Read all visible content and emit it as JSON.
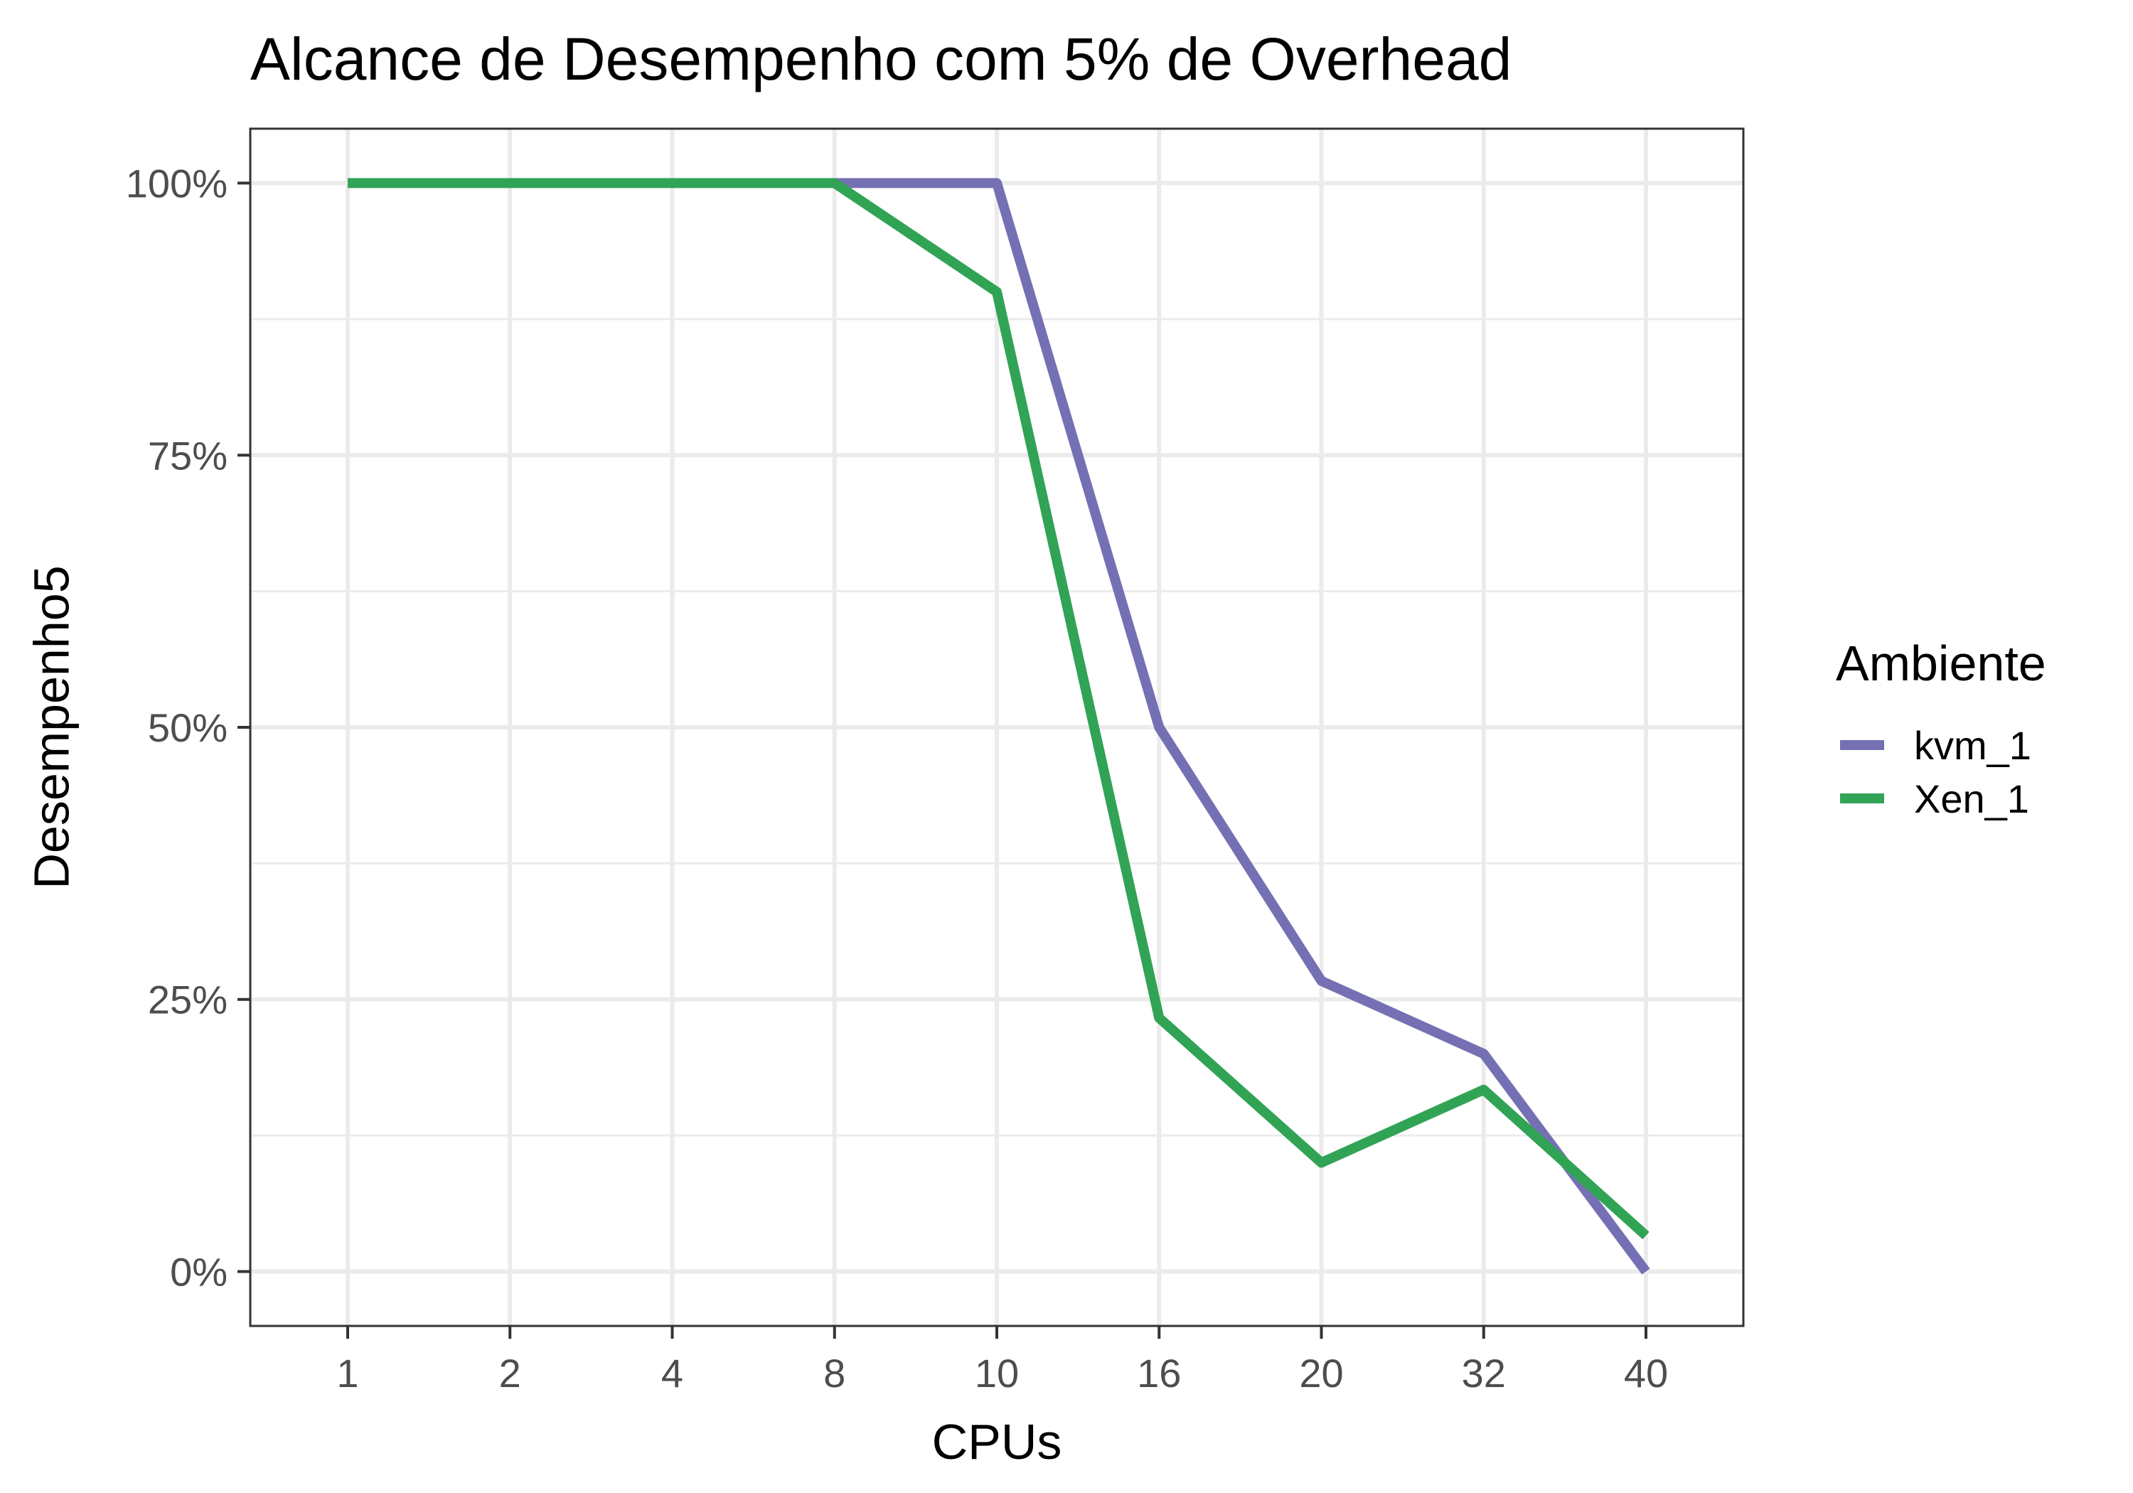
{
  "chart_data": {
    "type": "line",
    "title": "Alcance de Desempenho com 5% de Overhead",
    "xlabel": "CPUs",
    "ylabel": "Desempenho5",
    "categories": [
      "1",
      "2",
      "4",
      "8",
      "10",
      "16",
      "20",
      "32",
      "40"
    ],
    "y_tick_labels": [
      "0%",
      "25%",
      "50%",
      "75%",
      "100%"
    ],
    "y_tick_values": [
      0,
      0.25,
      0.5,
      0.75,
      1.0
    ],
    "ylim": [
      -0.05,
      1.05
    ],
    "grid": true,
    "legend": {
      "title": "Ambiente",
      "placement": "right"
    },
    "series": [
      {
        "name": "kvm_1",
        "color": "#7570b3",
        "values": [
          1.0,
          1.0,
          1.0,
          1.0,
          1.0,
          0.5,
          0.267,
          0.2,
          0.0
        ]
      },
      {
        "name": "Xen_1",
        "color": "#31a354",
        "values": [
          1.0,
          1.0,
          1.0,
          1.0,
          0.9,
          0.233,
          0.1,
          0.167,
          0.033
        ]
      }
    ]
  }
}
